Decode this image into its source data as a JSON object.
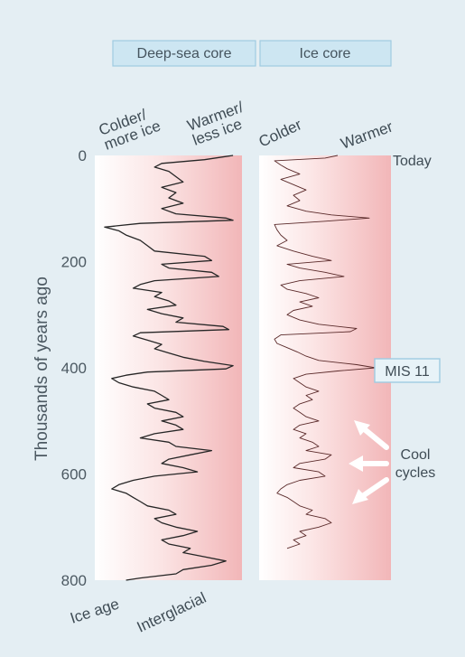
{
  "chart_data": [
    {
      "type": "line",
      "title": "Deep-sea core",
      "orientation": "vertical-time",
      "ylabel": "Thousands of years ago",
      "ylim": [
        0,
        800
      ],
      "y_ticks": [
        "0",
        "200",
        "400",
        "600",
        "800"
      ],
      "x_left_label": "Colder/\nmore ice",
      "x_right_label": "Warmer/\nless ice",
      "bottom_left_label": "Ice age",
      "bottom_right_label": "Interglacial",
      "x_scale": "relative 0 (cold) to 1 (warm)",
      "series": [
        {
          "t": [
            0,
            8,
            15,
            22,
            30,
            40,
            50,
            60,
            70,
            80,
            90,
            100,
            110,
            118,
            122,
            128,
            135,
            142,
            150,
            160,
            170,
            180,
            190,
            198,
            205,
            212,
            220,
            228,
            236,
            243,
            250,
            258,
            266,
            274,
            282,
            290,
            298,
            306,
            314,
            322,
            328,
            334,
            340,
            348,
            356,
            364,
            372,
            380,
            388,
            396,
            402,
            408,
            414,
            420,
            428,
            436,
            444,
            452,
            460,
            468,
            476,
            484,
            492,
            500,
            508,
            516,
            524,
            532,
            540,
            548,
            556,
            564,
            572,
            580,
            588,
            596,
            604,
            612,
            620,
            628,
            636,
            644,
            652,
            660,
            668,
            676,
            684,
            692,
            700,
            708,
            716,
            724,
            732,
            740,
            748,
            756,
            764,
            772,
            780,
            788,
            796,
            800
          ],
          "value": [
            0.95,
            0.75,
            0.45,
            0.4,
            0.5,
            0.55,
            0.6,
            0.45,
            0.55,
            0.5,
            0.6,
            0.45,
            0.55,
            0.9,
            0.95,
            0.3,
            0.05,
            0.15,
            0.2,
            0.3,
            0.35,
            0.4,
            0.75,
            0.8,
            0.45,
            0.5,
            0.8,
            0.85,
            0.4,
            0.3,
            0.25,
            0.45,
            0.4,
            0.5,
            0.55,
            0.35,
            0.45,
            0.6,
            0.55,
            0.88,
            0.92,
            0.3,
            0.25,
            0.35,
            0.45,
            0.4,
            0.5,
            0.6,
            0.75,
            0.95,
            0.9,
            0.35,
            0.2,
            0.1,
            0.15,
            0.25,
            0.4,
            0.45,
            0.5,
            0.35,
            0.4,
            0.55,
            0.6,
            0.45,
            0.55,
            0.6,
            0.4,
            0.3,
            0.5,
            0.55,
            0.8,
            0.65,
            0.5,
            0.45,
            0.6,
            0.7,
            0.4,
            0.25,
            0.15,
            0.1,
            0.2,
            0.25,
            0.3,
            0.35,
            0.5,
            0.55,
            0.4,
            0.45,
            0.55,
            0.7,
            0.6,
            0.45,
            0.5,
            0.65,
            0.6,
            0.75,
            0.9,
            0.8,
            0.6,
            0.55,
            0.3,
            0.2
          ]
        }
      ]
    },
    {
      "type": "line",
      "title": "Ice core",
      "orientation": "vertical-time",
      "ylim": [
        0,
        800
      ],
      "x_left_label": "Colder",
      "x_right_label": "Warmer",
      "x_scale": "relative 0 (cold) to 1 (warm)",
      "series": [
        {
          "t": [
            0,
            5,
            10,
            18,
            25,
            35,
            45,
            55,
            65,
            75,
            85,
            95,
            105,
            112,
            118,
            124,
            130,
            140,
            150,
            160,
            170,
            180,
            190,
            198,
            205,
            212,
            220,
            228,
            236,
            244,
            252,
            260,
            268,
            276,
            284,
            292,
            300,
            310,
            318,
            326,
            332,
            338,
            346,
            354,
            362,
            370,
            378,
            386,
            394,
            400,
            406,
            412,
            420,
            428,
            436,
            444,
            452,
            460,
            468,
            476,
            484,
            492,
            500,
            508,
            516,
            524,
            532,
            540,
            548,
            556,
            564,
            572,
            580,
            588,
            596,
            604,
            612,
            620,
            628,
            636,
            644,
            652,
            660,
            668,
            676,
            684,
            692,
            700,
            708,
            716,
            724,
            732,
            740
          ],
          "value": [
            0.6,
            0.5,
            0.1,
            0.15,
            0.2,
            0.3,
            0.15,
            0.25,
            0.35,
            0.25,
            0.3,
            0.2,
            0.35,
            0.55,
            0.85,
            0.5,
            0.1,
            0.12,
            0.15,
            0.2,
            0.12,
            0.25,
            0.4,
            0.55,
            0.2,
            0.3,
            0.5,
            0.65,
            0.3,
            0.15,
            0.2,
            0.35,
            0.45,
            0.3,
            0.4,
            0.25,
            0.2,
            0.3,
            0.45,
            0.75,
            0.7,
            0.15,
            0.1,
            0.12,
            0.2,
            0.28,
            0.35,
            0.45,
            0.75,
            0.9,
            0.6,
            0.35,
            0.25,
            0.3,
            0.35,
            0.45,
            0.35,
            0.4,
            0.3,
            0.25,
            0.3,
            0.35,
            0.45,
            0.3,
            0.25,
            0.35,
            0.3,
            0.4,
            0.45,
            0.35,
            0.55,
            0.5,
            0.3,
            0.25,
            0.45,
            0.5,
            0.3,
            0.2,
            0.15,
            0.12,
            0.2,
            0.25,
            0.3,
            0.4,
            0.35,
            0.5,
            0.55,
            0.45,
            0.3,
            0.35,
            0.25,
            0.3,
            0.2
          ]
        }
      ]
    }
  ],
  "annotations": {
    "today": "Today",
    "mis11": "MIS 11",
    "cool_cycles_line1": "Cool",
    "cool_cycles_line2": "cycles"
  },
  "colors": {
    "background": "#e4eef3",
    "warm_fill": "#f2b8b8",
    "cold_fill": "#ffffff",
    "deep_line": "#262626",
    "ice_line": "#5a2a2a",
    "header_box": "#cde6f2"
  }
}
